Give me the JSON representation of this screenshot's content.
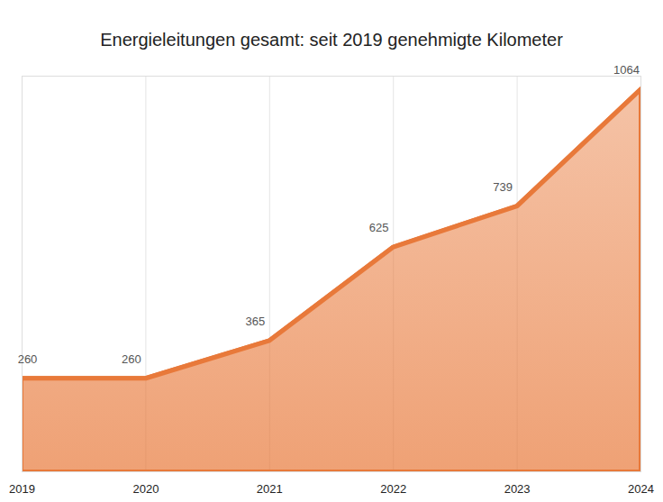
{
  "chart_data": {
    "type": "area",
    "title": "Energieleitungen gesamt: seit 2019 genehmigte Kilometer",
    "x": [
      2019,
      2020,
      2021,
      2022,
      2023,
      2024
    ],
    "values": [
      260,
      260,
      365,
      625,
      739,
      1064
    ],
    "color": "#e8793a",
    "xlim": [
      2019,
      2024
    ],
    "xticks": [
      2019,
      2020,
      2021,
      2022,
      2023,
      2024
    ],
    "ylim": [
      0,
      1100
    ],
    "yticks": [],
    "tick_labels": "x",
    "data_labels": true,
    "grid": true
  }
}
